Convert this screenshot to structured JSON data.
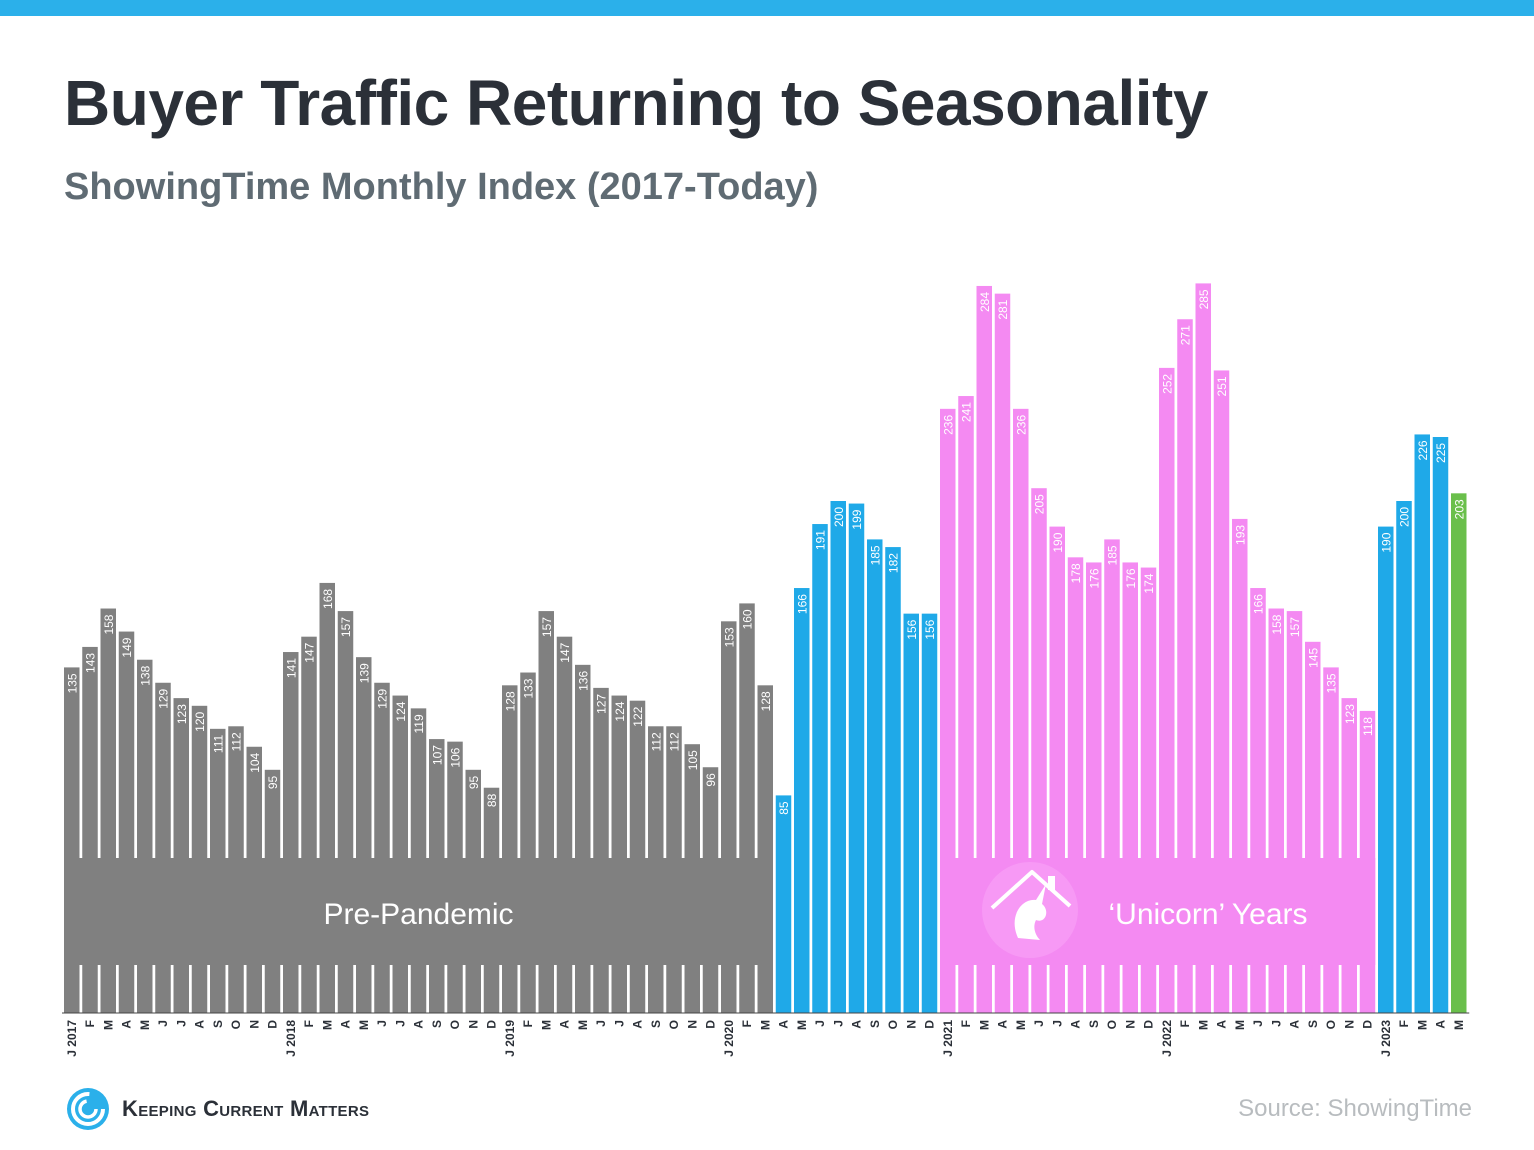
{
  "header": {
    "title": "Buyer Traffic Returning to Seasonality",
    "subtitle": "ShowingTime Monthly Index (2017-Today)"
  },
  "footer": {
    "logo_text": "Keeping Current Matters",
    "source": "Source: ShowingTime"
  },
  "colors": {
    "accent": "#2bb0ea",
    "pre_pandemic": "#808080",
    "pandemic": "#1fa9e8",
    "unicorn": "#f48af2",
    "current": "#6abf4b",
    "title": "#2b3038"
  },
  "icons": {
    "logo": "swirl-logo-icon",
    "unicorn": "unicorn-house-icon"
  },
  "chart_data": {
    "type": "bar",
    "title": "Buyer Traffic Returning to Seasonality",
    "subtitle": "ShowingTime Monthly Index (2017-Today)",
    "xlabel": "",
    "ylabel": "",
    "ylim": [
      0,
      300
    ],
    "grid": false,
    "categories": [
      "J 2017",
      "F",
      "M",
      "A",
      "M",
      "J",
      "J",
      "A",
      "S",
      "O",
      "N",
      "D",
      "J 2018",
      "F",
      "M",
      "A",
      "M",
      "J",
      "J",
      "A",
      "S",
      "O",
      "N",
      "D",
      "J 2019",
      "F",
      "M",
      "A",
      "M",
      "J",
      "J",
      "A",
      "S",
      "O",
      "N",
      "D",
      "J 2020",
      "F",
      "M",
      "A",
      "M",
      "J",
      "J",
      "A",
      "S",
      "O",
      "N",
      "D",
      "J 2021",
      "F",
      "M",
      "A",
      "M",
      "J",
      "J",
      "A",
      "S",
      "O",
      "N",
      "D",
      "J 2022",
      "F",
      "M",
      "A",
      "M",
      "J",
      "J",
      "A",
      "S",
      "O",
      "N",
      "D",
      "J 2023",
      "F",
      "M",
      "A",
      "M"
    ],
    "values": [
      135,
      143,
      158,
      149,
      138,
      129,
      123,
      120,
      111,
      112,
      104,
      95,
      141,
      147,
      168,
      157,
      139,
      129,
      124,
      119,
      107,
      106,
      95,
      88,
      128,
      133,
      157,
      147,
      136,
      127,
      124,
      122,
      112,
      112,
      105,
      96,
      153,
      160,
      128,
      85,
      166,
      191,
      200,
      199,
      185,
      182,
      156,
      156,
      236,
      241,
      284,
      281,
      236,
      205,
      190,
      178,
      176,
      185,
      176,
      174,
      252,
      271,
      285,
      251,
      193,
      166,
      158,
      157,
      145,
      135,
      123,
      118,
      190,
      200,
      226,
      225,
      203
    ],
    "series_colors": [
      "gray",
      "gray",
      "gray",
      "gray",
      "gray",
      "gray",
      "gray",
      "gray",
      "gray",
      "gray",
      "gray",
      "gray",
      "gray",
      "gray",
      "gray",
      "gray",
      "gray",
      "gray",
      "gray",
      "gray",
      "gray",
      "gray",
      "gray",
      "gray",
      "gray",
      "gray",
      "gray",
      "gray",
      "gray",
      "gray",
      "gray",
      "gray",
      "gray",
      "gray",
      "gray",
      "gray",
      "gray",
      "gray",
      "gray",
      "blue",
      "blue",
      "blue",
      "blue",
      "blue",
      "blue",
      "blue",
      "blue",
      "blue",
      "pink",
      "pink",
      "pink",
      "pink",
      "pink",
      "pink",
      "pink",
      "pink",
      "pink",
      "pink",
      "pink",
      "pink",
      "pink",
      "pink",
      "pink",
      "pink",
      "pink",
      "pink",
      "pink",
      "pink",
      "pink",
      "pink",
      "pink",
      "pink",
      "blue",
      "blue",
      "blue",
      "blue",
      "green"
    ],
    "period_labels": [
      {
        "label": "Pre-Pandemic",
        "start": 0,
        "end": 38
      },
      {
        "label": "‘Unicorn’ Years",
        "start": 48,
        "end": 71
      }
    ]
  }
}
